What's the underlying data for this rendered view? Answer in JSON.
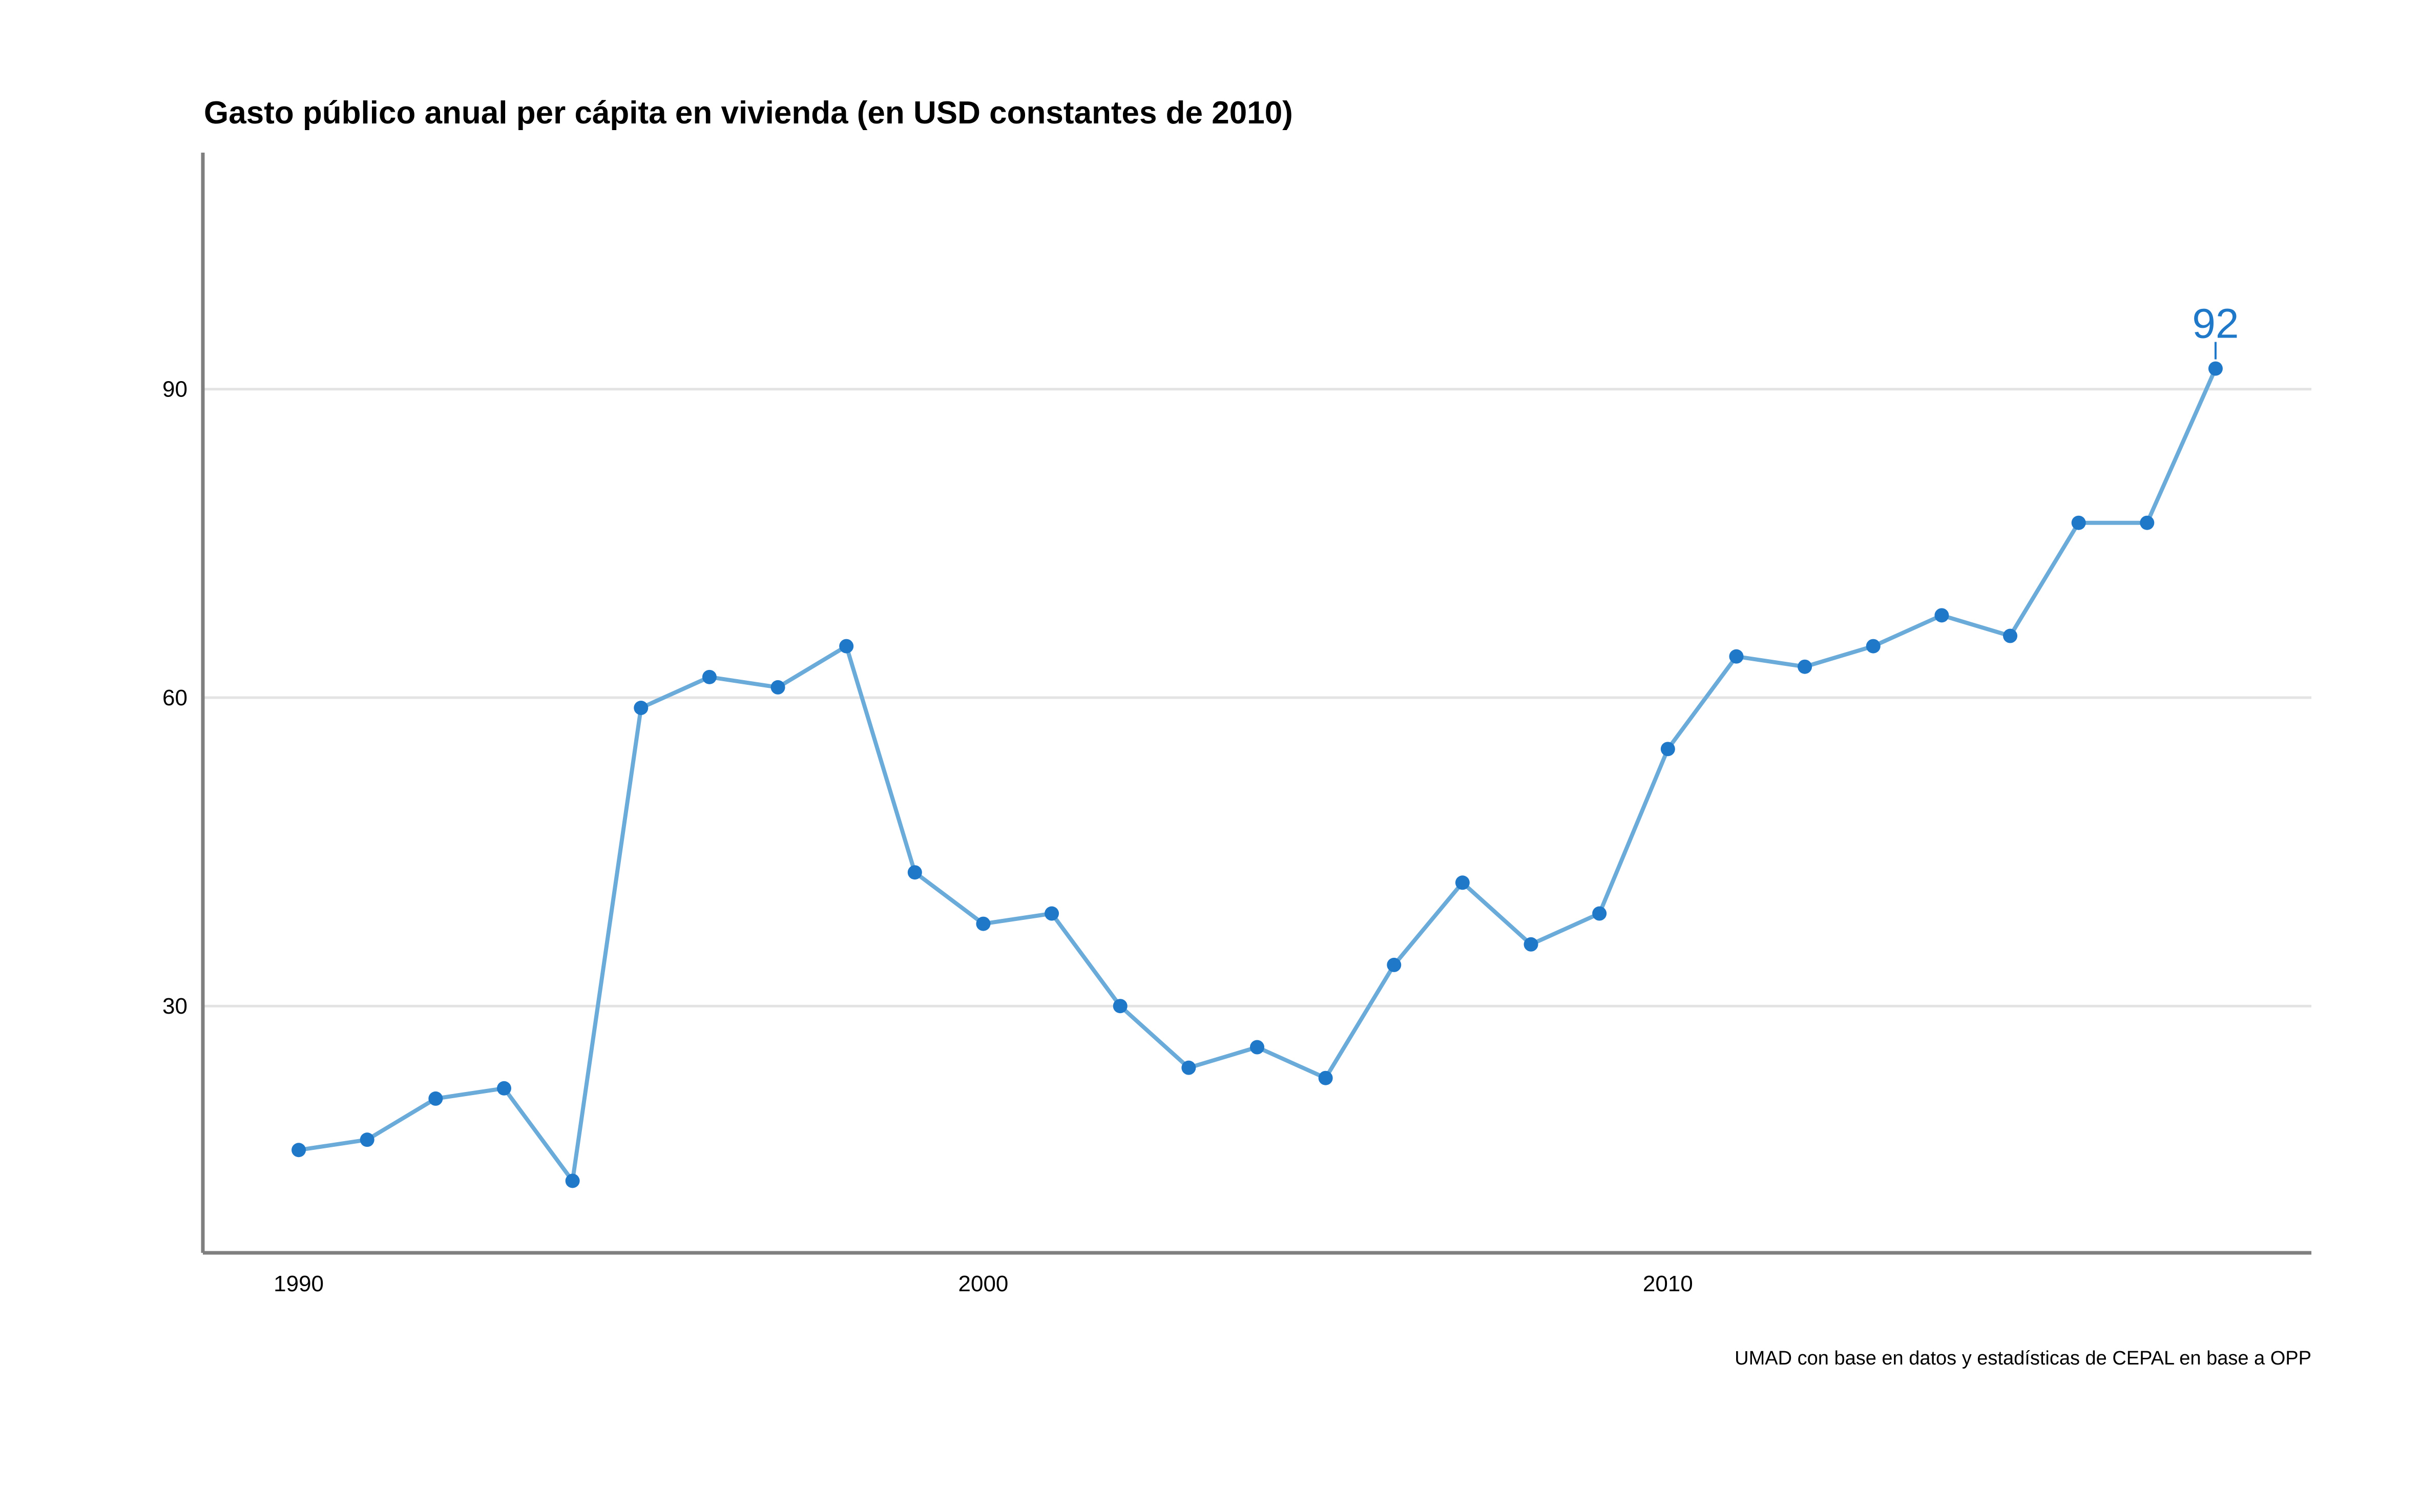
{
  "chart_data": {
    "type": "line",
    "title": "Gasto público anual per cápita en vivienda (en USD constantes de 2010)",
    "caption": "UMAD con base en datos y estadísticas de CEPAL en base a OPP",
    "xlabel": "",
    "ylabel": "",
    "x": [
      1990,
      1991,
      1992,
      1993,
      1994,
      1995,
      1996,
      1997,
      1998,
      1999,
      2000,
      2001,
      2002,
      2003,
      2004,
      2005,
      2006,
      2007,
      2008,
      2009,
      2010,
      2011,
      2012,
      2013,
      2014,
      2015,
      2016,
      2017,
      2018
    ],
    "values": [
      16,
      17,
      21,
      22,
      13,
      59,
      62,
      61,
      65,
      43,
      38,
      39,
      30,
      24,
      26,
      23,
      34,
      42,
      36,
      39,
      55,
      64,
      63,
      65,
      68,
      66,
      77,
      77,
      92
    ],
    "xlim": [
      1988.6,
      2019.4
    ],
    "ylim": [
      6,
      113
    ],
    "x_ticks": [
      1990,
      2000,
      2010
    ],
    "x_tick_labels": [
      "1990",
      "2000",
      "2010"
    ],
    "y_ticks": [
      30,
      60,
      90
    ],
    "y_tick_labels": [
      "30",
      "60",
      "90"
    ],
    "grid": "horizontal",
    "legend": "none",
    "end_label": "92",
    "colors": {
      "line": "#6aabd9",
      "point": "#1f78c8",
      "label": "#1f78c8",
      "grid": "#e3e3e3",
      "axis": "#7f7f7f"
    }
  }
}
